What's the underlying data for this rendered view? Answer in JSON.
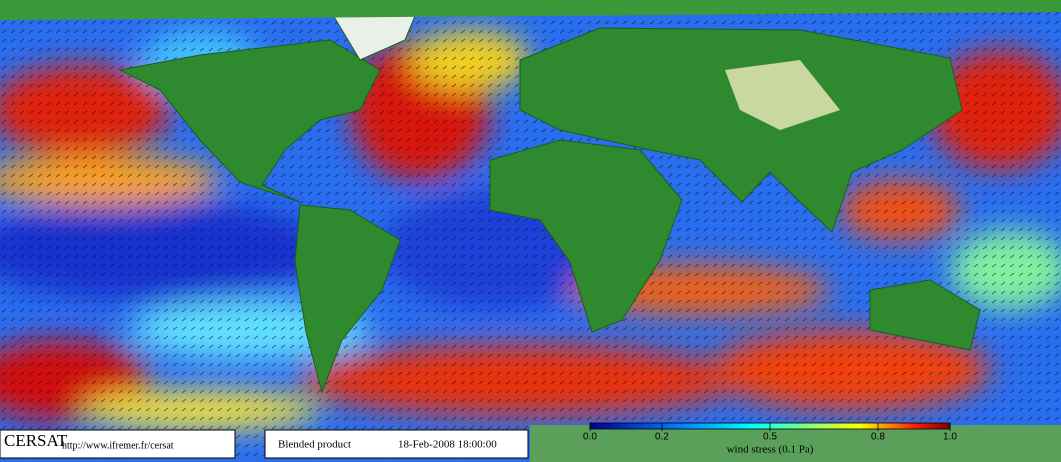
{
  "footer": {
    "logo": "CERSAT",
    "url": "http://www.ifremer.fr/cersat",
    "product": "Blended product",
    "date": "18-Feb-2008 18:00:00"
  },
  "colorbar": {
    "label": "wind stress (0.1 Pa)",
    "lim": [
      0,
      1
    ],
    "ticks": [
      {
        "value": 0,
        "label": "0.0"
      },
      0.2,
      0.5,
      0.8,
      {
        "value": 1,
        "label": "1.0"
      }
    ]
  }
}
